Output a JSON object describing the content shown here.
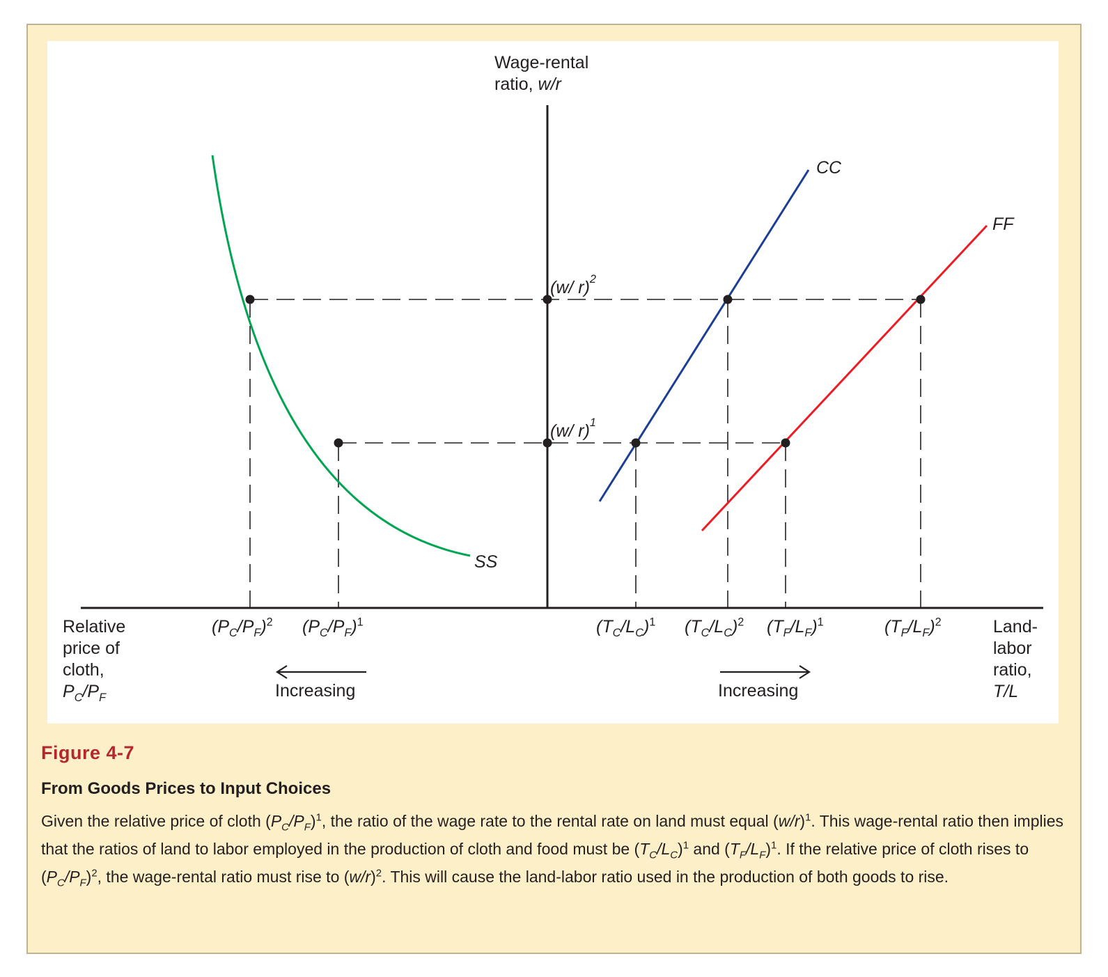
{
  "diagram": {
    "y_axis_title_line1": "Wage-rental",
    "y_axis_title_line2": "ratio, ",
    "y_axis_title_var": "w/r",
    "left_axis_title": [
      "Relative",
      "price of",
      "cloth,"
    ],
    "right_axis_title": [
      "Land-",
      "labor",
      "ratio,",
      "T/L"
    ],
    "curve_labels": {
      "ss": "SS",
      "cc": "CC",
      "ff": "FF"
    },
    "wr_labels": {
      "wr1_base": "(w/ r)",
      "wr1_sup": "1",
      "wr2_base": "(w/ r)",
      "wr2_sup": "2"
    },
    "arrow_label_left": "Increasing",
    "arrow_label_right": "Increasing",
    "tick_sups": {
      "pc2": "2",
      "pc1": "1",
      "tc1": "1",
      "tc2": "2",
      "tf1": "1",
      "tf2": "2"
    },
    "colors": {
      "ss": "#00a651",
      "cc": "#1c3f94",
      "ff": "#ed1c24",
      "axis": "#231f20"
    }
  },
  "caption": {
    "figure_number": "Figure 4-7",
    "title": "From Goods Prices to Input Choices",
    "text": "Given the relative price of cloth (PC/PF)1, the ratio of the wage rate to the rental rate on land must equal (w/r)1. This wage-rental ratio then implies that the ratios of land to labor employed in the production of cloth and food must be (TC/LC)1 and (TF/LF)1. If the relative price of cloth rises to (PC/PF)2, the wage-rental ratio must rise to (w/r)2. This will cause the land-labor ratio used in the production of both goods to rise."
  }
}
